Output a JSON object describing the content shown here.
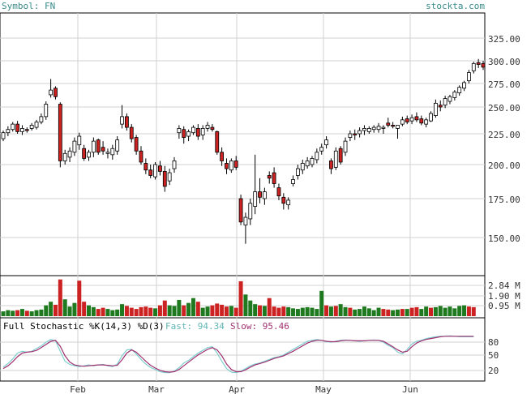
{
  "header": {
    "symbol": "Symbol: FN",
    "brand": "stockta.com"
  },
  "price_ticks": [
    "325.00",
    "300.00",
    "275.00",
    "250.00",
    "225.00",
    "200.00",
    "175.00",
    "150.00"
  ],
  "volume_ticks": [
    "2.84 M",
    "1.90 M",
    "0.95 M"
  ],
  "stoch_ticks": [
    "80",
    "50",
    "20"
  ],
  "stoch_legend": {
    "title": "Full Stochastic %K(14,3) %D(3)",
    "fast": "Fast: 94.34",
    "slow": "Slow: 95.46"
  },
  "months": [
    "Feb",
    "Mar",
    "Apr",
    "May",
    "Jun"
  ],
  "colors": {
    "up": "#ffffff",
    "down": "#cc2222",
    "vol_up": "#1f7a1f",
    "vol_down": "#cc2222",
    "fast": "#7fcfcf",
    "slow": "#a03070",
    "grid": "#d0d0d0",
    "header": "#3a8a8a"
  },
  "chart_data": [
    {
      "type": "candlestick",
      "title": "Symbol: FN",
      "ylim": [
        140,
        335
      ],
      "month_labels": [
        "Feb",
        "Mar",
        "Apr",
        "May",
        "Jun"
      ],
      "candles": [
        {
          "o": 221,
          "h": 228,
          "l": 219,
          "c": 226
        },
        {
          "o": 226,
          "h": 232,
          "l": 223,
          "c": 229
        },
        {
          "o": 229,
          "h": 236,
          "l": 227,
          "c": 234
        },
        {
          "o": 234,
          "h": 237,
          "l": 225,
          "c": 227
        },
        {
          "o": 227,
          "h": 233,
          "l": 224,
          "c": 230
        },
        {
          "o": 229,
          "h": 231,
          "l": 226,
          "c": 228
        },
        {
          "o": 230,
          "h": 235,
          "l": 228,
          "c": 233
        },
        {
          "o": 231,
          "h": 238,
          "l": 229,
          "c": 236
        },
        {
          "o": 236,
          "h": 244,
          "l": 234,
          "c": 241
        },
        {
          "o": 241,
          "h": 256,
          "l": 238,
          "c": 253
        },
        {
          "o": 263,
          "h": 280,
          "l": 260,
          "c": 268
        },
        {
          "o": 270,
          "h": 272,
          "l": 258,
          "c": 261
        },
        {
          "o": 253,
          "h": 255,
          "l": 198,
          "c": 203
        },
        {
          "o": 203,
          "h": 212,
          "l": 200,
          "c": 209
        },
        {
          "o": 206,
          "h": 214,
          "l": 202,
          "c": 211
        },
        {
          "o": 210,
          "h": 222,
          "l": 207,
          "c": 219
        },
        {
          "o": 216,
          "h": 226,
          "l": 212,
          "c": 223
        },
        {
          "o": 213,
          "h": 216,
          "l": 203,
          "c": 205
        },
        {
          "o": 206,
          "h": 212,
          "l": 203,
          "c": 210
        },
        {
          "o": 210,
          "h": 222,
          "l": 206,
          "c": 219
        },
        {
          "o": 220,
          "h": 221,
          "l": 208,
          "c": 210
        },
        {
          "o": 214,
          "h": 219,
          "l": 208,
          "c": 211
        },
        {
          "o": 209,
          "h": 213,
          "l": 205,
          "c": 210
        },
        {
          "o": 208,
          "h": 216,
          "l": 204,
          "c": 213
        },
        {
          "o": 211,
          "h": 223,
          "l": 208,
          "c": 220
        },
        {
          "o": 234,
          "h": 252,
          "l": 230,
          "c": 241
        },
        {
          "o": 241,
          "h": 244,
          "l": 228,
          "c": 231
        },
        {
          "o": 231,
          "h": 234,
          "l": 218,
          "c": 221
        },
        {
          "o": 222,
          "h": 224,
          "l": 208,
          "c": 211
        },
        {
          "o": 211,
          "h": 215,
          "l": 200,
          "c": 202
        },
        {
          "o": 201,
          "h": 205,
          "l": 193,
          "c": 196
        },
        {
          "o": 196,
          "h": 200,
          "l": 190,
          "c": 192
        },
        {
          "o": 191,
          "h": 202,
          "l": 189,
          "c": 200
        },
        {
          "o": 199,
          "h": 203,
          "l": 192,
          "c": 195
        },
        {
          "o": 195,
          "h": 199,
          "l": 180,
          "c": 184
        },
        {
          "o": 188,
          "h": 197,
          "l": 185,
          "c": 194
        },
        {
          "o": 197,
          "h": 206,
          "l": 194,
          "c": 203
        },
        {
          "o": 226,
          "h": 233,
          "l": 221,
          "c": 230
        },
        {
          "o": 229,
          "h": 232,
          "l": 217,
          "c": 222
        },
        {
          "o": 223,
          "h": 229,
          "l": 219,
          "c": 227
        },
        {
          "o": 226,
          "h": 233,
          "l": 224,
          "c": 231
        },
        {
          "o": 230,
          "h": 234,
          "l": 220,
          "c": 223
        },
        {
          "o": 224,
          "h": 233,
          "l": 220,
          "c": 230
        },
        {
          "o": 230,
          "h": 236,
          "l": 227,
          "c": 233
        },
        {
          "o": 231,
          "h": 234,
          "l": 227,
          "c": 229
        },
        {
          "o": 227,
          "h": 228,
          "l": 208,
          "c": 210
        },
        {
          "o": 210,
          "h": 214,
          "l": 199,
          "c": 203
        },
        {
          "o": 201,
          "h": 205,
          "l": 193,
          "c": 197
        },
        {
          "o": 196,
          "h": 205,
          "l": 194,
          "c": 203
        },
        {
          "o": 203,
          "h": 207,
          "l": 196,
          "c": 198
        },
        {
          "o": 175,
          "h": 178,
          "l": 158,
          "c": 160
        },
        {
          "o": 158,
          "h": 166,
          "l": 146,
          "c": 163
        },
        {
          "o": 162,
          "h": 175,
          "l": 158,
          "c": 172
        },
        {
          "o": 170,
          "h": 208,
          "l": 165,
          "c": 180
        },
        {
          "o": 180,
          "h": 190,
          "l": 172,
          "c": 176
        },
        {
          "o": 175,
          "h": 183,
          "l": 171,
          "c": 180
        },
        {
          "o": 192,
          "h": 195,
          "l": 186,
          "c": 190
        },
        {
          "o": 194,
          "h": 198,
          "l": 183,
          "c": 186
        },
        {
          "o": 183,
          "h": 186,
          "l": 174,
          "c": 177
        },
        {
          "o": 176,
          "h": 179,
          "l": 168,
          "c": 172
        },
        {
          "o": 171,
          "h": 176,
          "l": 168,
          "c": 174
        },
        {
          "o": 186,
          "h": 192,
          "l": 184,
          "c": 189
        },
        {
          "o": 192,
          "h": 200,
          "l": 189,
          "c": 197
        },
        {
          "o": 196,
          "h": 204,
          "l": 193,
          "c": 201
        },
        {
          "o": 199,
          "h": 206,
          "l": 197,
          "c": 203
        },
        {
          "o": 200,
          "h": 207,
          "l": 198,
          "c": 205
        },
        {
          "o": 204,
          "h": 213,
          "l": 201,
          "c": 210
        },
        {
          "o": 211,
          "h": 217,
          "l": 208,
          "c": 214
        },
        {
          "o": 216,
          "h": 223,
          "l": 213,
          "c": 220
        },
        {
          "o": 203,
          "h": 205,
          "l": 193,
          "c": 197
        },
        {
          "o": 198,
          "h": 214,
          "l": 196,
          "c": 211
        },
        {
          "o": 213,
          "h": 215,
          "l": 200,
          "c": 202
        },
        {
          "o": 210,
          "h": 222,
          "l": 207,
          "c": 219
        },
        {
          "o": 222,
          "h": 228,
          "l": 219,
          "c": 225
        },
        {
          "o": 225,
          "h": 229,
          "l": 220,
          "c": 224
        },
        {
          "o": 225,
          "h": 231,
          "l": 222,
          "c": 228
        },
        {
          "o": 228,
          "h": 233,
          "l": 224,
          "c": 230
        },
        {
          "o": 227,
          "h": 232,
          "l": 225,
          "c": 230
        },
        {
          "o": 229,
          "h": 233,
          "l": 226,
          "c": 231
        },
        {
          "o": 229,
          "h": 235,
          "l": 226,
          "c": 232
        },
        {
          "o": 230,
          "h": 233,
          "l": 225,
          "c": 231
        },
        {
          "o": 235,
          "h": 240,
          "l": 231,
          "c": 233
        },
        {
          "o": 233,
          "h": 236,
          "l": 230,
          "c": 232
        },
        {
          "o": 230,
          "h": 232,
          "l": 221,
          "c": 233
        },
        {
          "o": 234,
          "h": 241,
          "l": 232,
          "c": 238
        },
        {
          "o": 239,
          "h": 242,
          "l": 234,
          "c": 236
        },
        {
          "o": 237,
          "h": 243,
          "l": 234,
          "c": 240
        },
        {
          "o": 241,
          "h": 245,
          "l": 236,
          "c": 238
        },
        {
          "o": 239,
          "h": 242,
          "l": 233,
          "c": 235
        },
        {
          "o": 234,
          "h": 240,
          "l": 231,
          "c": 238
        },
        {
          "o": 237,
          "h": 246,
          "l": 236,
          "c": 244
        },
        {
          "o": 242,
          "h": 258,
          "l": 240,
          "c": 254
        },
        {
          "o": 252,
          "h": 257,
          "l": 246,
          "c": 250
        },
        {
          "o": 252,
          "h": 262,
          "l": 249,
          "c": 259
        },
        {
          "o": 256,
          "h": 263,
          "l": 253,
          "c": 261
        },
        {
          "o": 260,
          "h": 268,
          "l": 257,
          "c": 266
        },
        {
          "o": 265,
          "h": 273,
          "l": 262,
          "c": 271
        },
        {
          "o": 270,
          "h": 278,
          "l": 267,
          "c": 276
        },
        {
          "o": 278,
          "h": 290,
          "l": 275,
          "c": 287
        },
        {
          "o": 289,
          "h": 299,
          "l": 286,
          "c": 297
        },
        {
          "o": 298,
          "h": 302,
          "l": 292,
          "c": 296
        },
        {
          "o": 297,
          "h": 300,
          "l": 290,
          "c": 293
        }
      ]
    },
    {
      "type": "bar",
      "ylabel": "Volume",
      "ylim": [
        0,
        3.3
      ],
      "values": [
        0.4,
        0.5,
        0.45,
        0.5,
        0.6,
        0.45,
        0.4,
        0.5,
        0.55,
        0.9,
        1.2,
        0.95,
        3.05,
        1.4,
        0.8,
        1.1,
        2.95,
        1.2,
        0.9,
        0.75,
        0.6,
        0.7,
        0.6,
        0.5,
        0.55,
        1.0,
        0.85,
        0.7,
        0.6,
        0.75,
        0.8,
        0.7,
        0.65,
        0.9,
        1.3,
        0.9,
        0.85,
        1.35,
        0.9,
        1.1,
        1.5,
        1.2,
        0.7,
        0.8,
        0.9,
        1.05,
        0.95,
        0.8,
        0.85,
        0.7,
        2.9,
        1.8,
        1.3,
        1.0,
        0.9,
        0.85,
        1.5,
        0.8,
        0.7,
        0.8,
        0.75,
        0.65,
        0.6,
        0.7,
        0.75,
        0.7,
        0.6,
        2.1,
        0.9,
        0.8,
        0.85,
        1.0,
        0.75,
        0.7,
        0.55,
        0.6,
        0.8,
        0.65,
        0.5,
        0.7,
        0.6,
        0.55,
        0.5,
        0.55,
        0.6,
        0.6,
        0.7,
        0.75,
        0.6,
        0.8,
        0.7,
        0.75,
        0.85,
        0.7,
        0.8,
        0.65,
        0.85,
        0.9,
        0.8,
        0.75
      ],
      "up": [
        1,
        1,
        1,
        0,
        1,
        0,
        1,
        1,
        1,
        1,
        1,
        0,
        0,
        1,
        1,
        1,
        0,
        0,
        1,
        1,
        0,
        0,
        1,
        1,
        1,
        1,
        0,
        0,
        0,
        0,
        0,
        0,
        1,
        0,
        0,
        1,
        1,
        1,
        0,
        1,
        1,
        0,
        1,
        1,
        0,
        0,
        0,
        0,
        1,
        0,
        0,
        1,
        1,
        1,
        0,
        1,
        0,
        0,
        0,
        0,
        1,
        1,
        1,
        1,
        1,
        1,
        1,
        1,
        0,
        1,
        0,
        1,
        1,
        0,
        1,
        1,
        1,
        1,
        1,
        1,
        0,
        0,
        1,
        1,
        0,
        1,
        0,
        0,
        1,
        1,
        0,
        1,
        1,
        1,
        1,
        1,
        1,
        1,
        0,
        0
      ]
    },
    {
      "type": "line",
      "title": "Full Stochastic %K(14,3) %D(3)",
      "ylim": [
        0,
        100
      ],
      "series": [
        {
          "name": "Fast",
          "values": [
            27,
            35,
            45,
            58,
            62,
            60,
            62,
            68,
            74,
            82,
            88,
            85,
            62,
            40,
            33,
            30,
            28,
            30,
            32,
            30,
            32,
            33,
            30,
            28,
            34,
            52,
            65,
            66,
            56,
            44,
            34,
            26,
            22,
            17,
            15,
            15,
            18,
            26,
            36,
            42,
            50,
            58,
            64,
            70,
            72,
            58,
            40,
            24,
            16,
            15,
            18,
            24,
            30,
            34,
            36,
            40,
            44,
            48,
            50,
            54,
            60,
            66,
            72,
            78,
            84,
            86,
            88,
            86,
            83,
            82,
            84,
            86,
            87,
            86,
            85,
            84,
            85,
            86,
            87,
            86,
            82,
            75,
            70,
            60,
            56,
            66,
            78,
            84,
            86,
            90,
            92,
            94,
            95,
            95,
            96,
            95,
            94,
            94,
            94,
            94
          ]
        },
        {
          "name": "Slow",
          "values": [
            24,
            30,
            39,
            50,
            58,
            60,
            61,
            64,
            70,
            77,
            84,
            86,
            73,
            52,
            38,
            32,
            30,
            29,
            30,
            31,
            32,
            32,
            31,
            30,
            31,
            43,
            58,
            65,
            60,
            50,
            40,
            31,
            25,
            20,
            17,
            16,
            17,
            22,
            30,
            38,
            46,
            54,
            60,
            66,
            70,
            65,
            52,
            34,
            22,
            17,
            17,
            21,
            27,
            32,
            35,
            38,
            42,
            46,
            49,
            52,
            57,
            62,
            68,
            74,
            80,
            84,
            86,
            86,
            84,
            83,
            83,
            85,
            86,
            86,
            85,
            85,
            85,
            86,
            86,
            86,
            84,
            78,
            72,
            65,
            60,
            62,
            72,
            80,
            85,
            88,
            90,
            92,
            94,
            95,
            95,
            95,
            95,
            95,
            95,
            95
          ]
        }
      ]
    }
  ]
}
